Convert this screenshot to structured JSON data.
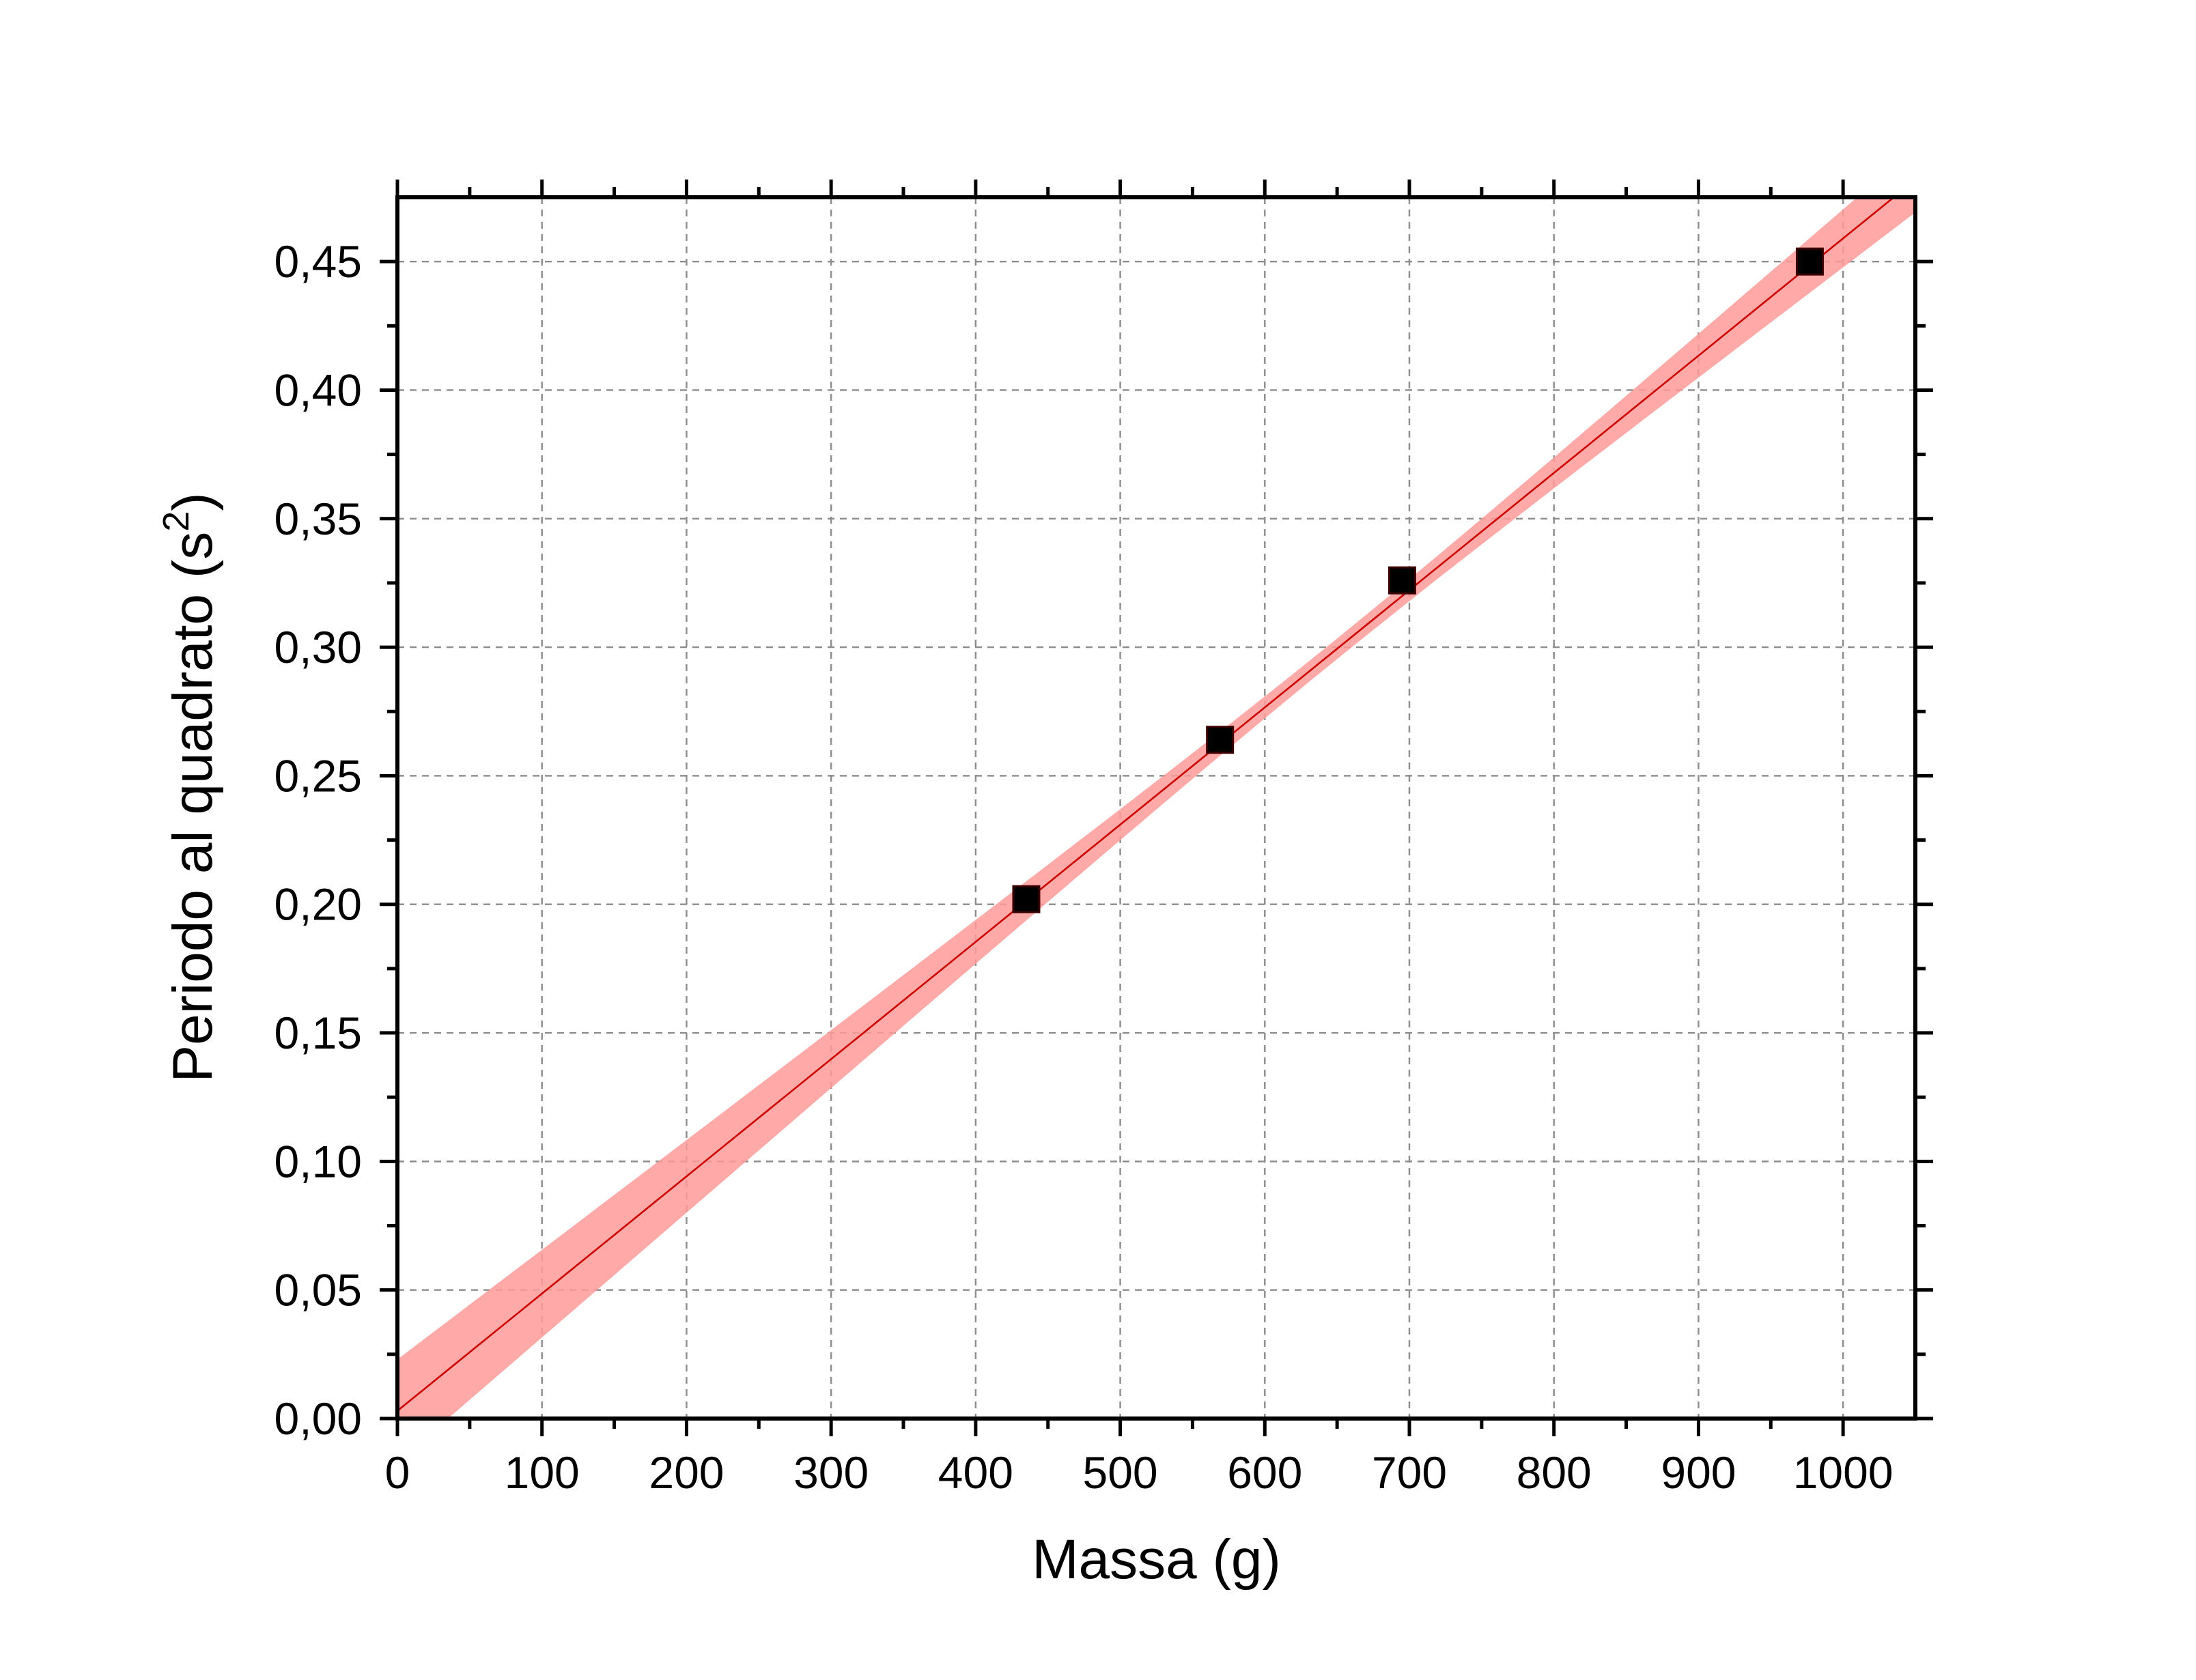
{
  "chart_data": {
    "type": "scatter",
    "title": "",
    "xlabel": "Massa (g)",
    "ylabel_main": "Periodo al quadrato (s",
    "ylabel_sup": "2",
    "ylabel_end": ")",
    "xlim": [
      0,
      1050
    ],
    "ylim": [
      0,
      0.475
    ],
    "grid": true,
    "x_ticks": [
      0,
      100,
      200,
      300,
      400,
      500,
      600,
      700,
      800,
      900,
      1000
    ],
    "x_tick_labels": [
      "0",
      "100",
      "200",
      "300",
      "400",
      "500",
      "600",
      "700",
      "800",
      "900",
      "1000"
    ],
    "y_ticks": [
      0,
      0.05,
      0.1,
      0.15,
      0.2,
      0.25,
      0.3,
      0.35,
      0.4,
      0.45
    ],
    "y_tick_labels": [
      "0,00",
      "0,05",
      "0,10",
      "0,15",
      "0,20",
      "0,25",
      "0,30",
      "0,35",
      "0,40",
      "0,45"
    ],
    "series": [
      {
        "type": "scatter",
        "marker": "square",
        "color": "#000000",
        "x": [
          435,
          569,
          695,
          977
        ],
        "y": [
          0.202,
          0.264,
          0.326,
          0.45
        ]
      }
    ],
    "fit": {
      "type": "linear",
      "color": "#cc0000",
      "slope": 0.000456,
      "intercept": 0.003,
      "confidence_band": {
        "color": "#ff9a9a",
        "half_width_at_0": 0.02,
        "half_width_at_center": 0.004,
        "center_x": 650
      }
    }
  }
}
